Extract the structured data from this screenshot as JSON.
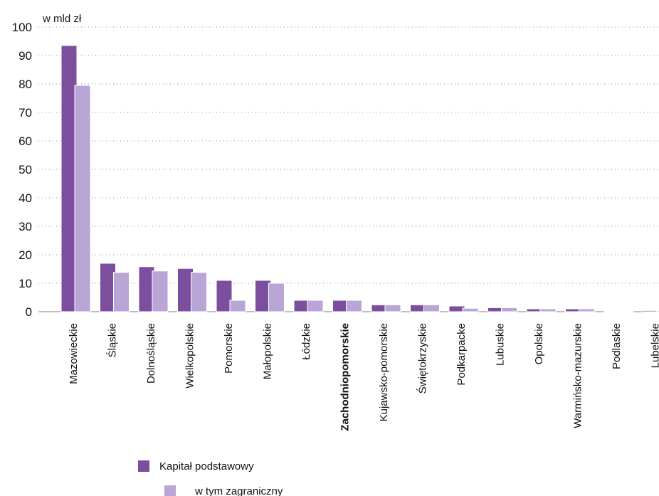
{
  "chart_data": {
    "type": "bar",
    "title": "",
    "unit_label": "w mld zł",
    "xlabel": "",
    "ylabel": "",
    "ylim": [
      0,
      100
    ],
    "yticks": [
      0,
      10,
      20,
      30,
      40,
      50,
      60,
      70,
      80,
      90,
      100
    ],
    "grid": "horizontal dotted",
    "legend_position": "bottom-left",
    "highlighted_category": "Zachodniopomorskie",
    "categories": [
      "Mazowieckie",
      "Śląskie",
      "Dolnośląskie",
      "Wielkopolskie",
      "Pomorskie",
      "Małopolskie",
      "Łódzkie",
      "Zachodniopomorskie",
      "Kujawsko-pomorskie",
      "Świętokrzyskie",
      "Podkarpacke",
      "Lubuskie",
      "Opolskie",
      "Warmińsko-mazurskie",
      "Podlaskie",
      "Lubelskie"
    ],
    "series": [
      {
        "name": "Kapitał podstawowy",
        "color": "#7b4f9d",
        "values": [
          93.5,
          17.0,
          15.8,
          15.2,
          11.0,
          11.0,
          4.0,
          4.0,
          2.4,
          2.4,
          2.0,
          1.4,
          1.0,
          1.0,
          0.2,
          0.4
        ]
      },
      {
        "name": "w tym zagraniczny",
        "color": "#b9a6d6",
        "values": [
          79.5,
          13.8,
          14.3,
          13.8,
          4.0,
          10.0,
          4.0,
          4.0,
          2.4,
          2.4,
          1.2,
          1.4,
          1.0,
          1.0,
          0.1,
          0.4
        ]
      }
    ]
  }
}
